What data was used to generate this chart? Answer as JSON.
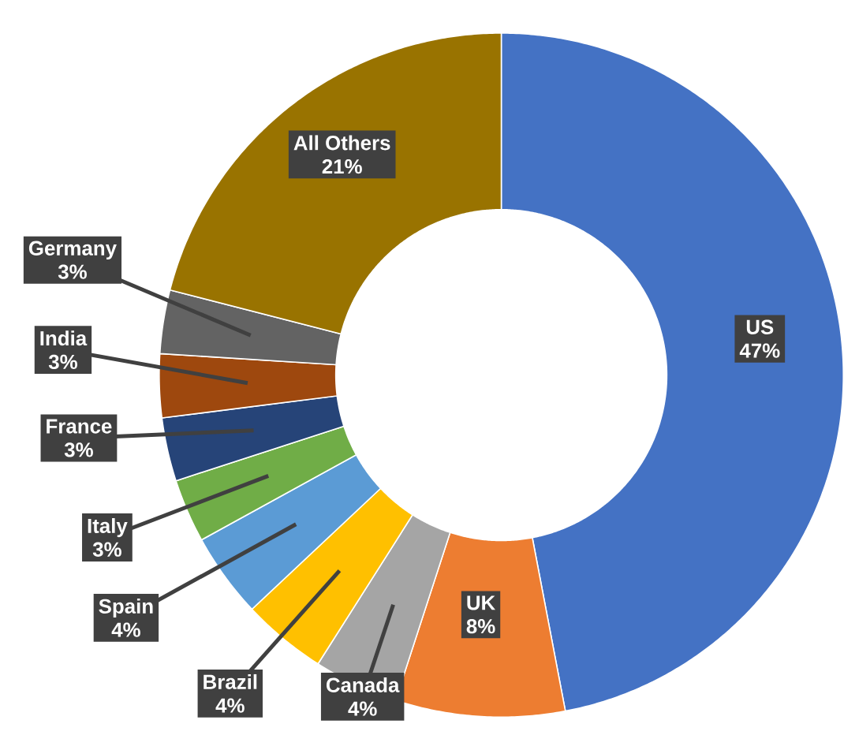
{
  "chart_data": {
    "type": "donut",
    "categories": [
      "US",
      "UK",
      "Canada",
      "Brazil",
      "Spain",
      "Italy",
      "France",
      "India",
      "Germany",
      "All Others"
    ],
    "values": [
      47,
      8,
      4,
      4,
      4,
      3,
      3,
      3,
      3,
      21
    ],
    "value_labels": [
      "47%",
      "8%",
      "4%",
      "4%",
      "4%",
      "3%",
      "3%",
      "3%",
      "3%",
      "21%"
    ],
    "colors": [
      "#4472c4",
      "#ed7d31",
      "#a5a5a5",
      "#ffc000",
      "#5b9bd5",
      "#70ad47",
      "#264478",
      "#9e480e",
      "#636363",
      "#997300"
    ]
  }
}
